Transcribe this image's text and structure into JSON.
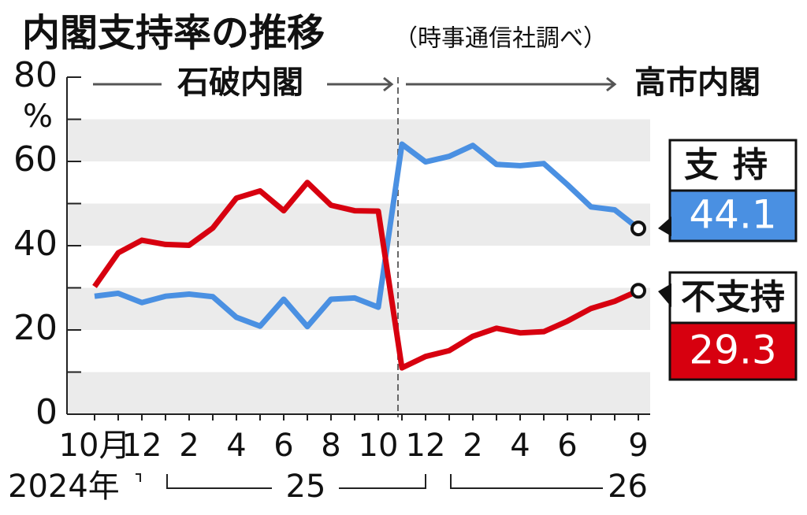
{
  "chart_data": {
    "type": "line",
    "title": "内閣支持率の推移",
    "subtitle": "（時事通信社調べ）",
    "y_label": "%",
    "annotations": [
      "石破内閣",
      "高市内閣"
    ],
    "categories": [
      "10月",
      null,
      "12",
      null,
      "2",
      null,
      "4",
      null,
      "6",
      null,
      "8",
      null,
      "10",
      null,
      "12",
      null,
      "2",
      null,
      "4",
      null,
      "6",
      null,
      null,
      "9"
    ],
    "year_labels": [
      "2024年",
      "25",
      "26"
    ],
    "series": [
      {
        "name": "支持",
        "color": "#4a90e2",
        "values": [
          28,
          28.7,
          26.5,
          28,
          28.5,
          27.9,
          23,
          20.9,
          27.3,
          20.8,
          27.3,
          27.6,
          25.4,
          64.1,
          59.9,
          61.2,
          63.8,
          59.3,
          59,
          59.5,
          54.5,
          49.2,
          48.5,
          44.1
        ]
      },
      {
        "name": "不支持",
        "color": "#d7000f",
        "values": [
          30.3,
          38.3,
          41.3,
          40.3,
          40.1,
          44.2,
          51.3,
          53,
          48.3,
          55,
          49.6,
          48.3,
          48.2,
          11,
          13.7,
          15.1,
          18.5,
          20.4,
          19.3,
          19.6,
          22.1,
          25.1,
          26.8,
          29.3
        ]
      }
    ],
    "ylim": [
      0,
      80
    ],
    "yticks": [
      0,
      20,
      40,
      60,
      80
    ],
    "yminor_ticks": [
      10,
      30,
      50,
      70
    ],
    "bands": true
  }
}
